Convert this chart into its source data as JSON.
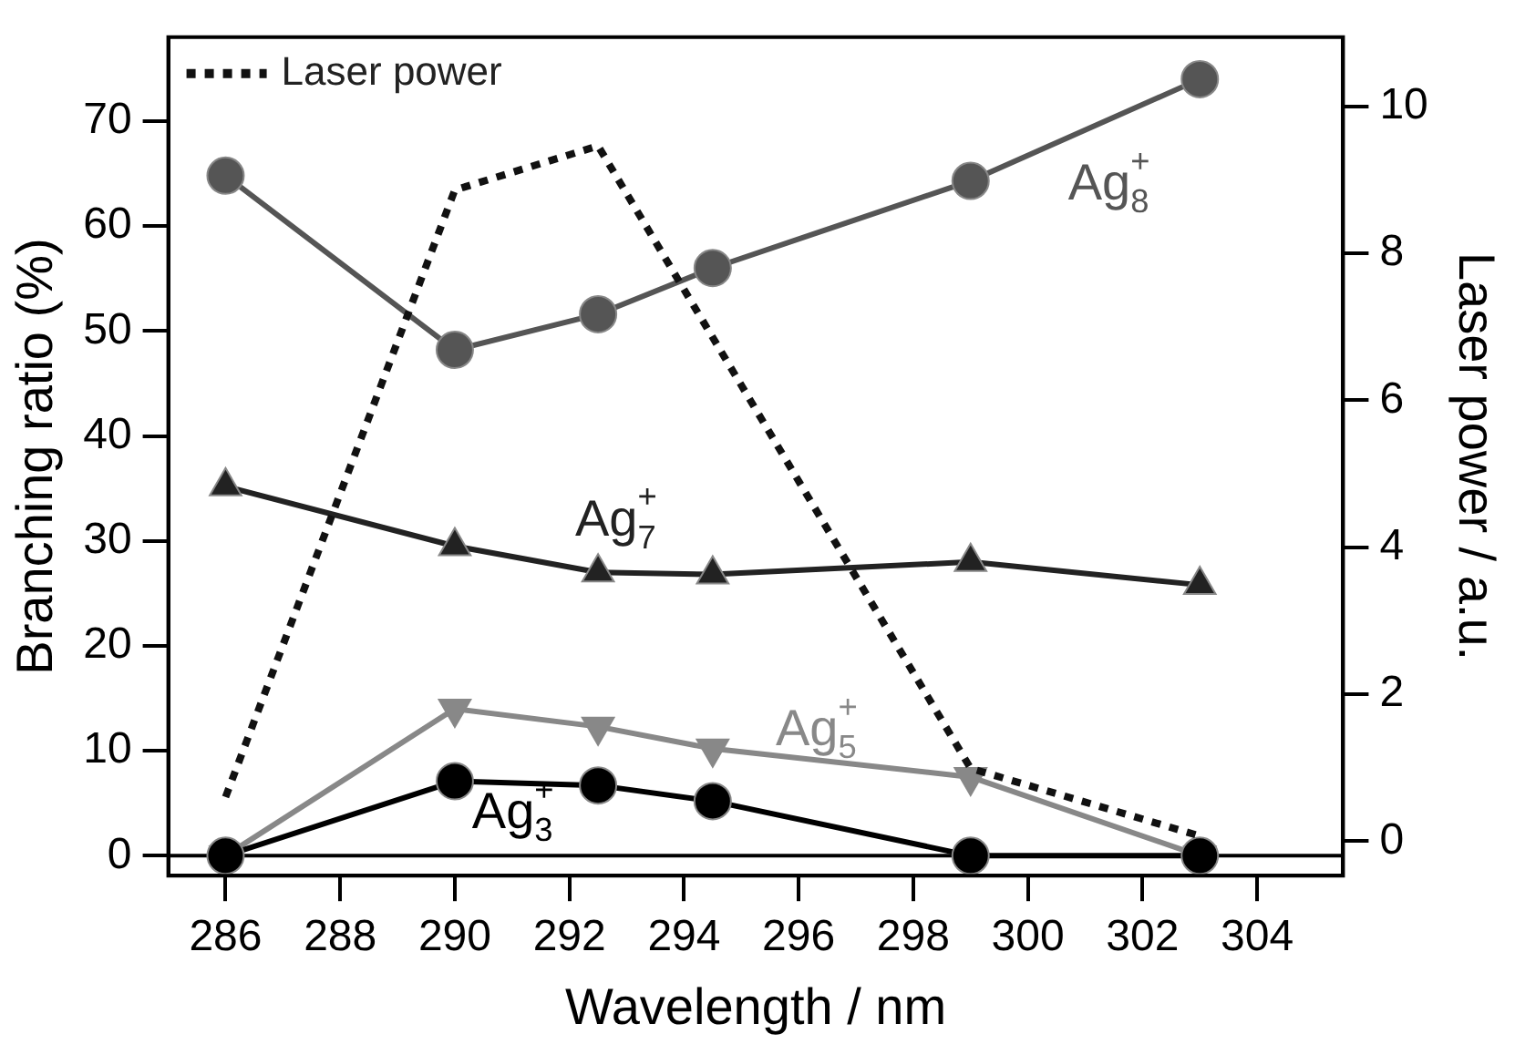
{
  "chart_data": {
    "type": "line",
    "xlabel": "Wavelength / nm",
    "ylabel": "Branching ratio (%)",
    "y2label": "Laser power / a.u.",
    "xlim": [
      285,
      305.5
    ],
    "xticks": [
      286,
      288,
      290,
      292,
      294,
      296,
      298,
      300,
      302,
      304
    ],
    "ylim": [
      -1.9,
      78
    ],
    "yticks": [
      0,
      10,
      20,
      30,
      40,
      50,
      60,
      70
    ],
    "y2lim": [
      -0.47,
      10.94
    ],
    "y2ticks": [
      0,
      2,
      4,
      6,
      8,
      10
    ],
    "grid": false,
    "legend": "top left",
    "ref_lines": [
      {
        "axis": "y",
        "value": 0,
        "color": "#000000"
      }
    ],
    "series": [
      {
        "name": "Ag$_{8}$$^{+}$",
        "color": "#555555",
        "marker": "circle",
        "x": [
          286,
          290,
          292.5,
          294.5,
          299,
          303
        ],
        "values": [
          64.8,
          48.2,
          51.6,
          56,
          64.3,
          74
        ]
      },
      {
        "name": "Ag$_{7}$$^{+}$",
        "color": "#222222",
        "marker": "triangle",
        "x": [
          286,
          290,
          292.5,
          294.5,
          299,
          303
        ],
        "values": [
          35.2,
          29.5,
          27,
          26.8,
          28,
          25.8
        ]
      },
      {
        "name": "Ag$_{5}$$^{+}$",
        "color": "#888888",
        "marker": "triangle-down",
        "x": [
          286,
          290,
          292.5,
          294.5,
          299,
          303
        ],
        "values": [
          0,
          14,
          12.3,
          10.2,
          7.5,
          0
        ]
      },
      {
        "name": "Ag$_{3}$$^{+}$",
        "color": "#000000",
        "marker": "circle",
        "x": [
          286,
          290,
          292.5,
          294.5,
          299,
          303
        ],
        "values": [
          0,
          7.1,
          6.7,
          5.2,
          0,
          0
        ]
      },
      {
        "name": "Laser power",
        "color": "#111111",
        "axis": "y2",
        "marker": "none",
        "line_style": "dotted",
        "x": [
          286,
          290,
          292.5,
          299,
          303
        ],
        "values": [
          0.6,
          8.86,
          9.46,
          0.99,
          0.07
        ]
      }
    ]
  }
}
